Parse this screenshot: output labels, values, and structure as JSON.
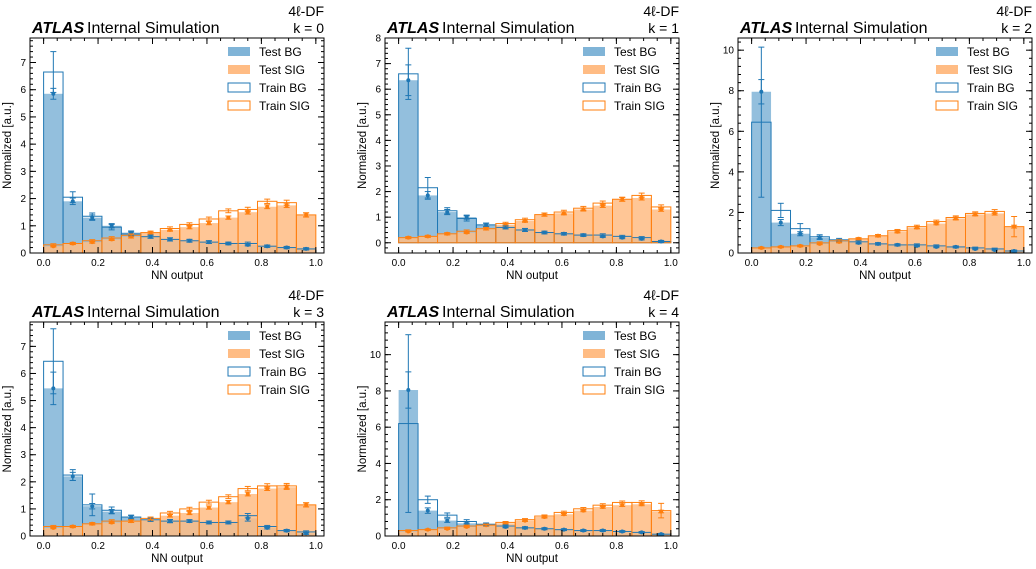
{
  "colors": {
    "bg_fill": "#80b4d7",
    "sig_fill": "#ffbc84",
    "bg_line": "#1f77b4",
    "sig_line": "#ff7f0e",
    "axis": "#000000"
  },
  "legend": [
    "Test BG",
    "Test SIG",
    "Train BG",
    "Train SIG"
  ],
  "chart_data": [
    {
      "type": "histogram",
      "atlas_label": "ATLAS",
      "atlas_suffix": "Internal Simulation",
      "region": "4ℓ-DF",
      "fold": "k = 0",
      "xlabel": "NN output",
      "ylabel": "Normalized [a.u.]",
      "xlim": [
        -0.05,
        1.03
      ],
      "ylim": [
        0,
        7.9
      ],
      "xticks": [
        "0.0",
        "0.2",
        "0.4",
        "0.6",
        "0.8",
        "1.0"
      ],
      "yticks": [
        "0",
        "1",
        "2",
        "3",
        "4",
        "5",
        "6",
        "7"
      ],
      "bin_edges": [
        0,
        0.0714,
        0.1429,
        0.2143,
        0.2857,
        0.3571,
        0.4286,
        0.5,
        0.5714,
        0.6429,
        0.7143,
        0.7857,
        0.8571,
        0.9286,
        1.0
      ],
      "series": [
        {
          "name": "Test BG",
          "values": [
            5.85,
            1.9,
            1.3,
            1.0,
            0.75,
            0.6,
            0.5,
            0.45,
            0.4,
            0.35,
            0.3,
            0.25,
            0.2,
            0.15
          ],
          "errors": [
            0.2,
            0.12,
            0.1,
            0.08,
            0.06,
            0.05,
            0.05,
            0.05,
            0.05,
            0.04,
            0.04,
            0.04,
            0.04,
            0.04
          ]
        },
        {
          "name": "Test SIG",
          "values": [
            0.25,
            0.35,
            0.4,
            0.5,
            0.6,
            0.75,
            0.85,
            0.95,
            1.1,
            1.3,
            1.5,
            1.7,
            1.75,
            1.4
          ],
          "errors": [
            0.03,
            0.03,
            0.04,
            0.04,
            0.05,
            0.05,
            0.05,
            0.06,
            0.06,
            0.06,
            0.07,
            0.07,
            0.08,
            0.07
          ]
        },
        {
          "name": "Train BG",
          "values": [
            6.65,
            2.05,
            1.35,
            0.95,
            0.7,
            0.6,
            0.5,
            0.45,
            0.4,
            0.35,
            0.35,
            0.25,
            0.2,
            0.15
          ],
          "errors": [
            0.75,
            0.2,
            0.12,
            0.1,
            0.07,
            0.06,
            0.06,
            0.05,
            0.05,
            0.05,
            0.05,
            0.04,
            0.04,
            0.04
          ]
        },
        {
          "name": "Train SIG",
          "values": [
            0.3,
            0.35,
            0.45,
            0.55,
            0.65,
            0.75,
            0.9,
            1.05,
            1.25,
            1.55,
            1.6,
            1.9,
            1.85,
            1.4
          ],
          "errors": [
            0.04,
            0.04,
            0.04,
            0.05,
            0.05,
            0.05,
            0.06,
            0.06,
            0.07,
            0.07,
            0.08,
            0.08,
            0.09,
            0.08
          ]
        }
      ]
    },
    {
      "type": "histogram",
      "atlas_label": "ATLAS",
      "atlas_suffix": "Internal Simulation",
      "region": "4ℓ-DF",
      "fold": "k = 1",
      "xlabel": "NN output",
      "ylabel": "Normalized [a.u.]",
      "xlim": [
        -0.05,
        1.03
      ],
      "ylim": [
        -0.4,
        8.0
      ],
      "xticks": [
        "0.0",
        "0.2",
        "0.4",
        "0.6",
        "0.8",
        "1.0"
      ],
      "yticks": [
        "0",
        "1",
        "2",
        "3",
        "4",
        "5",
        "6",
        "7",
        "8"
      ],
      "bin_edges": [
        0,
        0.0714,
        0.1429,
        0.2143,
        0.2857,
        0.3571,
        0.4286,
        0.5,
        0.5714,
        0.6429,
        0.7143,
        0.7857,
        0.8571,
        0.9286,
        1.0
      ],
      "series": [
        {
          "name": "Test BG",
          "values": [
            6.35,
            1.85,
            1.2,
            1.0,
            0.7,
            0.6,
            0.5,
            0.4,
            0.35,
            0.3,
            0.25,
            0.2,
            0.15,
            0.05
          ],
          "errors": [
            0.6,
            0.15,
            0.1,
            0.08,
            0.06,
            0.05,
            0.05,
            0.05,
            0.04,
            0.04,
            0.04,
            0.04,
            0.04,
            0.04
          ]
        },
        {
          "name": "Test SIG",
          "values": [
            0.2,
            0.25,
            0.35,
            0.4,
            0.55,
            0.7,
            0.85,
            1.1,
            1.15,
            1.3,
            1.45,
            1.7,
            1.75,
            1.3
          ],
          "errors": [
            0.03,
            0.03,
            0.04,
            0.04,
            0.05,
            0.05,
            0.05,
            0.06,
            0.06,
            0.06,
            0.07,
            0.07,
            0.08,
            0.07
          ]
        },
        {
          "name": "Train BG",
          "values": [
            6.6,
            2.15,
            1.25,
            0.95,
            0.7,
            0.6,
            0.5,
            0.4,
            0.35,
            0.3,
            0.3,
            0.25,
            0.2,
            0.05
          ],
          "errors": [
            1.0,
            0.4,
            0.12,
            0.1,
            0.07,
            0.06,
            0.06,
            0.05,
            0.05,
            0.05,
            0.05,
            0.04,
            0.04,
            0.04
          ]
        },
        {
          "name": "Train SIG",
          "values": [
            0.2,
            0.25,
            0.35,
            0.45,
            0.55,
            0.75,
            0.9,
            1.1,
            1.2,
            1.35,
            1.55,
            1.7,
            1.85,
            1.4
          ],
          "errors": [
            0.04,
            0.04,
            0.04,
            0.05,
            0.05,
            0.05,
            0.06,
            0.06,
            0.07,
            0.07,
            0.08,
            0.08,
            0.09,
            0.08
          ]
        }
      ]
    },
    {
      "type": "histogram",
      "atlas_label": "ATLAS",
      "atlas_suffix": "Internal Simulation",
      "region": "4ℓ-DF",
      "fold": "k = 2",
      "xlabel": "NN output",
      "ylabel": "Normalized [a.u.]",
      "xlim": [
        -0.05,
        1.03
      ],
      "ylim": [
        0,
        10.6
      ],
      "xticks": [
        "0.0",
        "0.2",
        "0.4",
        "0.6",
        "0.8",
        "1.0"
      ],
      "yticks": [
        "0",
        "2",
        "4",
        "6",
        "8",
        "10"
      ],
      "bin_edges": [
        0,
        0.0714,
        0.1429,
        0.2143,
        0.2857,
        0.3571,
        0.4286,
        0.5,
        0.5714,
        0.6429,
        0.7143,
        0.7857,
        0.8571,
        0.9286,
        1.0
      ],
      "series": [
        {
          "name": "Test BG",
          "values": [
            7.95,
            1.5,
            0.95,
            0.75,
            0.6,
            0.5,
            0.45,
            0.4,
            0.35,
            0.3,
            0.3,
            0.2,
            0.15,
            0.1
          ],
          "errors": [
            0.6,
            0.15,
            0.1,
            0.08,
            0.06,
            0.05,
            0.05,
            0.05,
            0.04,
            0.04,
            0.04,
            0.04,
            0.04,
            0.04
          ]
        },
        {
          "name": "Test SIG",
          "values": [
            0.25,
            0.3,
            0.35,
            0.45,
            0.55,
            0.7,
            0.85,
            1.05,
            1.25,
            1.45,
            1.7,
            1.9,
            1.95,
            1.3
          ],
          "errors": [
            0.03,
            0.03,
            0.04,
            0.04,
            0.05,
            0.05,
            0.05,
            0.06,
            0.06,
            0.06,
            0.07,
            0.07,
            0.08,
            0.07
          ]
        },
        {
          "name": "Train BG",
          "values": [
            6.45,
            2.1,
            1.2,
            0.8,
            0.65,
            0.55,
            0.45,
            0.4,
            0.4,
            0.35,
            0.3,
            0.25,
            0.2,
            0.1
          ],
          "errors": [
            3.7,
            0.35,
            0.25,
            0.1,
            0.07,
            0.06,
            0.06,
            0.05,
            0.05,
            0.05,
            0.05,
            0.04,
            0.04,
            0.04
          ]
        },
        {
          "name": "Train SIG",
          "values": [
            0.25,
            0.3,
            0.35,
            0.5,
            0.6,
            0.7,
            0.85,
            1.1,
            1.3,
            1.55,
            1.75,
            1.95,
            2.05,
            1.3
          ],
          "errors": [
            0.04,
            0.04,
            0.04,
            0.05,
            0.05,
            0.05,
            0.06,
            0.06,
            0.07,
            0.07,
            0.08,
            0.08,
            0.09,
            0.5
          ]
        }
      ]
    },
    {
      "type": "histogram",
      "atlas_label": "ATLAS",
      "atlas_suffix": "Internal Simulation",
      "region": "4ℓ-DF",
      "fold": "k = 3",
      "xlabel": "NN output",
      "ylabel": "Normalized [a.u.]",
      "xlim": [
        -0.05,
        1.03
      ],
      "ylim": [
        0,
        7.9
      ],
      "xticks": [
        "0.0",
        "0.2",
        "0.4",
        "0.6",
        "0.8",
        "1.0"
      ],
      "yticks": [
        "0",
        "1",
        "2",
        "3",
        "4",
        "5",
        "6",
        "7"
      ],
      "bin_edges": [
        0,
        0.0714,
        0.1429,
        0.2143,
        0.2857,
        0.3571,
        0.4286,
        0.5,
        0.5714,
        0.6429,
        0.7143,
        0.7857,
        0.8571,
        0.9286,
        1.0
      ],
      "series": [
        {
          "name": "Test BG",
          "values": [
            5.45,
            2.2,
            1.1,
            0.9,
            0.7,
            0.6,
            0.55,
            0.55,
            0.5,
            0.5,
            0.65,
            0.3,
            0.2,
            0.1
          ],
          "errors": [
            0.6,
            0.15,
            0.1,
            0.08,
            0.06,
            0.05,
            0.05,
            0.05,
            0.05,
            0.05,
            0.1,
            0.04,
            0.04,
            0.04
          ]
        },
        {
          "name": "Test SIG",
          "values": [
            0.3,
            0.35,
            0.45,
            0.5,
            0.55,
            0.6,
            0.75,
            0.85,
            1.05,
            1.25,
            1.55,
            1.75,
            1.8,
            1.15
          ],
          "errors": [
            0.03,
            0.03,
            0.04,
            0.04,
            0.05,
            0.05,
            0.05,
            0.06,
            0.06,
            0.06,
            0.07,
            0.07,
            0.08,
            0.07
          ]
        },
        {
          "name": "Train BG",
          "values": [
            6.45,
            2.25,
            1.15,
            0.95,
            0.7,
            0.6,
            0.55,
            0.55,
            0.5,
            0.5,
            0.75,
            0.35,
            0.2,
            0.15
          ],
          "errors": [
            1.2,
            0.2,
            0.4,
            0.12,
            0.07,
            0.06,
            0.06,
            0.05,
            0.05,
            0.05,
            0.08,
            0.04,
            0.04,
            0.04
          ]
        },
        {
          "name": "Train SIG",
          "values": [
            0.35,
            0.35,
            0.45,
            0.55,
            0.55,
            0.65,
            0.85,
            1.0,
            1.25,
            1.45,
            1.75,
            1.85,
            1.85,
            1.15
          ],
          "errors": [
            0.04,
            0.04,
            0.04,
            0.05,
            0.05,
            0.05,
            0.06,
            0.06,
            0.07,
            0.07,
            0.08,
            0.08,
            0.09,
            0.08
          ]
        }
      ]
    },
    {
      "type": "histogram",
      "atlas_label": "ATLAS",
      "atlas_suffix": "Internal Simulation",
      "region": "4ℓ-DF",
      "fold": "k = 4",
      "xlabel": "NN output",
      "ylabel": "Normalized [a.u.]",
      "xlim": [
        -0.05,
        1.03
      ],
      "ylim": [
        0,
        11.8
      ],
      "xticks": [
        "0.0",
        "0.2",
        "0.4",
        "0.6",
        "0.8",
        "1.0"
      ],
      "yticks": [
        "0",
        "2",
        "4",
        "6",
        "8",
        "10"
      ],
      "bin_edges": [
        0,
        0.0714,
        0.1429,
        0.2143,
        0.2857,
        0.3571,
        0.4286,
        0.5,
        0.5714,
        0.6429,
        0.7143,
        0.7857,
        0.8571,
        0.9286,
        1.0
      ],
      "series": [
        {
          "name": "Test BG",
          "values": [
            8.05,
            1.4,
            0.85,
            0.7,
            0.6,
            0.5,
            0.45,
            0.4,
            0.35,
            0.3,
            0.3,
            0.25,
            0.2,
            0.1
          ],
          "errors": [
            1.0,
            0.15,
            0.1,
            0.08,
            0.06,
            0.05,
            0.05,
            0.05,
            0.04,
            0.04,
            0.04,
            0.04,
            0.04,
            0.04
          ]
        },
        {
          "name": "Test SIG",
          "values": [
            0.25,
            0.35,
            0.4,
            0.5,
            0.6,
            0.7,
            0.85,
            1.05,
            1.2,
            1.4,
            1.6,
            1.7,
            1.75,
            1.35
          ],
          "errors": [
            0.03,
            0.03,
            0.04,
            0.04,
            0.05,
            0.05,
            0.05,
            0.06,
            0.06,
            0.06,
            0.07,
            0.07,
            0.08,
            0.07
          ]
        },
        {
          "name": "Train BG",
          "values": [
            6.2,
            2.0,
            1.15,
            0.8,
            0.65,
            0.55,
            0.45,
            0.4,
            0.35,
            0.3,
            0.3,
            0.25,
            0.2,
            0.1
          ],
          "errors": [
            4.9,
            0.2,
            0.12,
            0.1,
            0.07,
            0.06,
            0.06,
            0.05,
            0.05,
            0.05,
            0.05,
            0.04,
            0.04,
            0.04
          ]
        },
        {
          "name": "Train SIG",
          "values": [
            0.3,
            0.35,
            0.45,
            0.55,
            0.6,
            0.75,
            0.9,
            1.1,
            1.3,
            1.5,
            1.7,
            1.85,
            1.85,
            1.4
          ],
          "errors": [
            0.04,
            0.04,
            0.04,
            0.05,
            0.05,
            0.05,
            0.06,
            0.06,
            0.07,
            0.07,
            0.08,
            0.08,
            0.09,
            0.4
          ]
        }
      ]
    }
  ]
}
